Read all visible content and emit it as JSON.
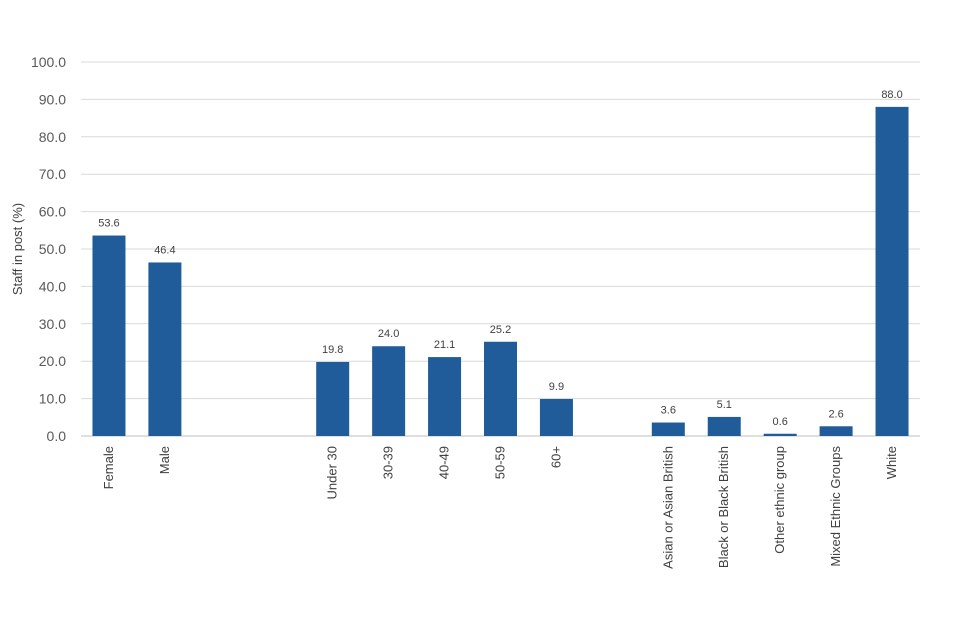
{
  "chart_data": {
    "type": "bar",
    "title": "",
    "xlabel": "",
    "ylabel": "Staff in post (%)",
    "ylim": [
      0,
      100
    ],
    "y_ticks": [
      "0.0",
      "10.0",
      "20.0",
      "30.0",
      "40.0",
      "50.0",
      "60.0",
      "70.0",
      "80.0",
      "90.0",
      "100.0"
    ],
    "grid": true,
    "bar_color": "#1f5c99",
    "categories": [
      "Female",
      "Male",
      "",
      "",
      "Under 30",
      "30-39",
      "40-49",
      "50-59",
      "60+",
      "",
      "Asian or Asian British",
      "Black or Black British",
      "Other ethnic group",
      "Mixed Ethnic Groups",
      "White"
    ],
    "values": [
      53.6,
      46.4,
      null,
      null,
      19.8,
      24.0,
      21.1,
      25.2,
      9.9,
      null,
      3.6,
      5.1,
      0.6,
      2.6,
      88.0
    ],
    "value_labels": [
      "53.6",
      "46.4",
      "",
      "",
      "19.8",
      "24.0",
      "21.1",
      "25.2",
      "9.9",
      "",
      "3.6",
      "5.1",
      "0.6",
      "2.6",
      "88.0"
    ]
  }
}
